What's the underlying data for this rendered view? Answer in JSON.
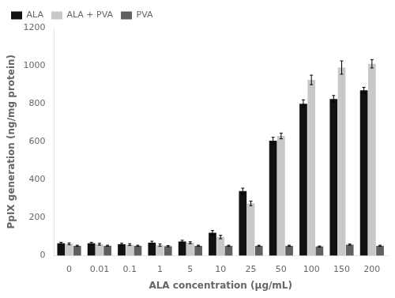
{
  "chart_data": {
    "type": "bar",
    "xlabel": "ALA concentration (μg/mL)",
    "ylabel": "PpIX generation (ng/mg protein)",
    "categories": [
      "0",
      "0.01",
      "0.1",
      "1",
      "5",
      "10",
      "25",
      "50",
      "100",
      "150",
      "200"
    ],
    "series": [
      {
        "name": "ALA",
        "color": "#111111",
        "values": [
          65,
          65,
          60,
          68,
          75,
          120,
          340,
          605,
          800,
          825,
          870
        ],
        "errors": [
          5,
          5,
          5,
          8,
          6,
          12,
          15,
          18,
          20,
          18,
          16
        ]
      },
      {
        "name": "ALA + PVA",
        "color": "#c8c8c8",
        "values": [
          62,
          60,
          58,
          55,
          68,
          98,
          275,
          630,
          925,
          990,
          1010
        ],
        "errors": [
          5,
          5,
          5,
          6,
          5,
          9,
          12,
          15,
          25,
          35,
          22
        ]
      },
      {
        "name": "PVA",
        "color": "#606060",
        "values": [
          52,
          52,
          52,
          50,
          52,
          52,
          52,
          52,
          48,
          58,
          52
        ],
        "errors": [
          3,
          3,
          3,
          3,
          3,
          3,
          3,
          3,
          3,
          3,
          3
        ]
      }
    ],
    "ylim": [
      0,
      1200
    ],
    "yticks": [
      0,
      200,
      400,
      600,
      800,
      1000,
      1200
    ],
    "grid": false,
    "legend": "upper left"
  }
}
